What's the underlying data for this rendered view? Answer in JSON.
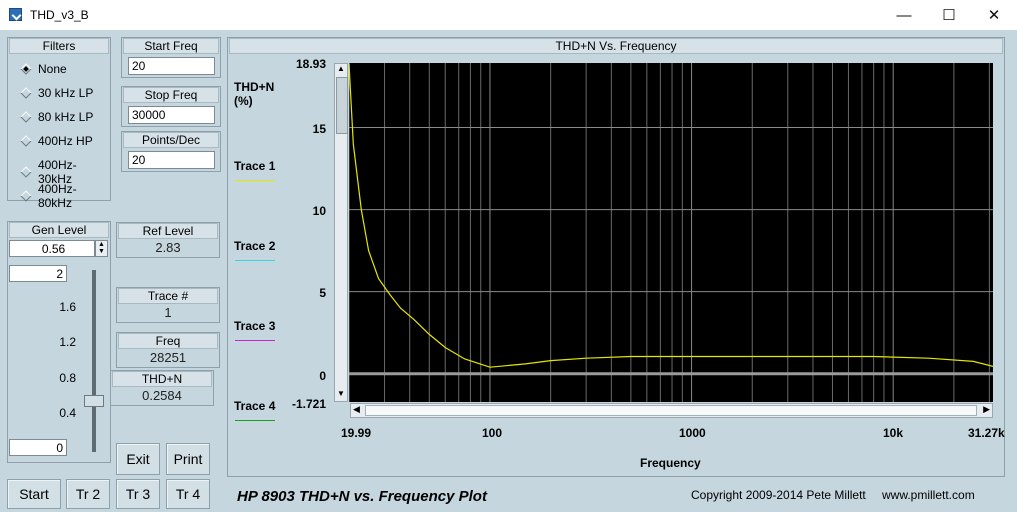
{
  "window": {
    "title": "THD_v3_B",
    "minimize": "—",
    "maximize": "☐",
    "close": "✕"
  },
  "filters": {
    "title": "Filters",
    "options": [
      "None",
      "30 kHz LP",
      "80 kHz LP",
      "400Hz HP",
      "400Hz-30kHz",
      "400Hz-80kHz"
    ],
    "selected": "None"
  },
  "start_freq": {
    "label": "Start Freq",
    "value": "20"
  },
  "stop_freq": {
    "label": "Stop Freq",
    "value": "30000"
  },
  "points_dec": {
    "label": "Points/Dec",
    "value": "20"
  },
  "gen_level": {
    "label": "Gen Level",
    "value": "0.56",
    "slider_max": "2",
    "slider_min": "0",
    "ticks": [
      "1.6",
      "1.2",
      "0.8",
      "0.4"
    ],
    "level_fraction": 0.28
  },
  "ref_level": {
    "label": "Ref Level",
    "value": "2.83"
  },
  "trace_num": {
    "label": "Trace #",
    "value": "1"
  },
  "freq": {
    "label": "Freq",
    "value": "28251"
  },
  "thdn": {
    "label": "THD+N",
    "value": "0.2584"
  },
  "buttons": {
    "exit": "Exit",
    "print": "Print",
    "start": "Start",
    "tr2": "Tr 2",
    "tr3": "Tr 3",
    "tr4": "Tr 4"
  },
  "plot": {
    "title": "THD+N Vs. Frequency",
    "ylabel": "THD+N (%)",
    "xlabel": "Frequency",
    "y_top_label": "18.93",
    "y_bottom_label": "-1.721",
    "y_ticks": [
      "15",
      "10",
      "5",
      "0"
    ],
    "x_left_label": "19.99",
    "x_right_label": "31.27k",
    "x_ticks": [
      "100",
      "1000",
      "10k"
    ],
    "traces": [
      {
        "label": "Trace 1",
        "color": "#e6e600"
      },
      {
        "label": "Trace 2",
        "color": "#35d4e0"
      },
      {
        "label": "Trace 3",
        "color": "#c826c8"
      },
      {
        "label": "Trace 4",
        "color": "#1aa01a"
      }
    ],
    "footer_title": "HP 8903 THD+N vs. Frequency Plot",
    "copyright": "Copyright 2009-2014 Pete Millett",
    "website": "www.pmillett.com"
  },
  "chart_data": {
    "type": "line",
    "x_scale": "log",
    "xlim": [
      19.99,
      31270
    ],
    "ylim": [
      -1.721,
      18.93
    ],
    "grid": true,
    "series": [
      {
        "name": "Trace 1",
        "color": "#e6e600",
        "x": [
          19.99,
          21,
          23,
          25,
          28,
          32,
          36,
          42,
          50,
          60,
          75,
          100,
          150,
          200,
          300,
          500,
          1000,
          2000,
          4000,
          8000,
          15000,
          25000,
          31270
        ],
        "y": [
          18.9,
          14,
          10,
          7.5,
          5.8,
          4.8,
          4.0,
          3.3,
          2.4,
          1.6,
          0.9,
          0.4,
          0.6,
          0.8,
          0.95,
          1.05,
          1.05,
          1.05,
          1.05,
          1.05,
          0.95,
          0.75,
          0.45
        ]
      }
    ]
  }
}
